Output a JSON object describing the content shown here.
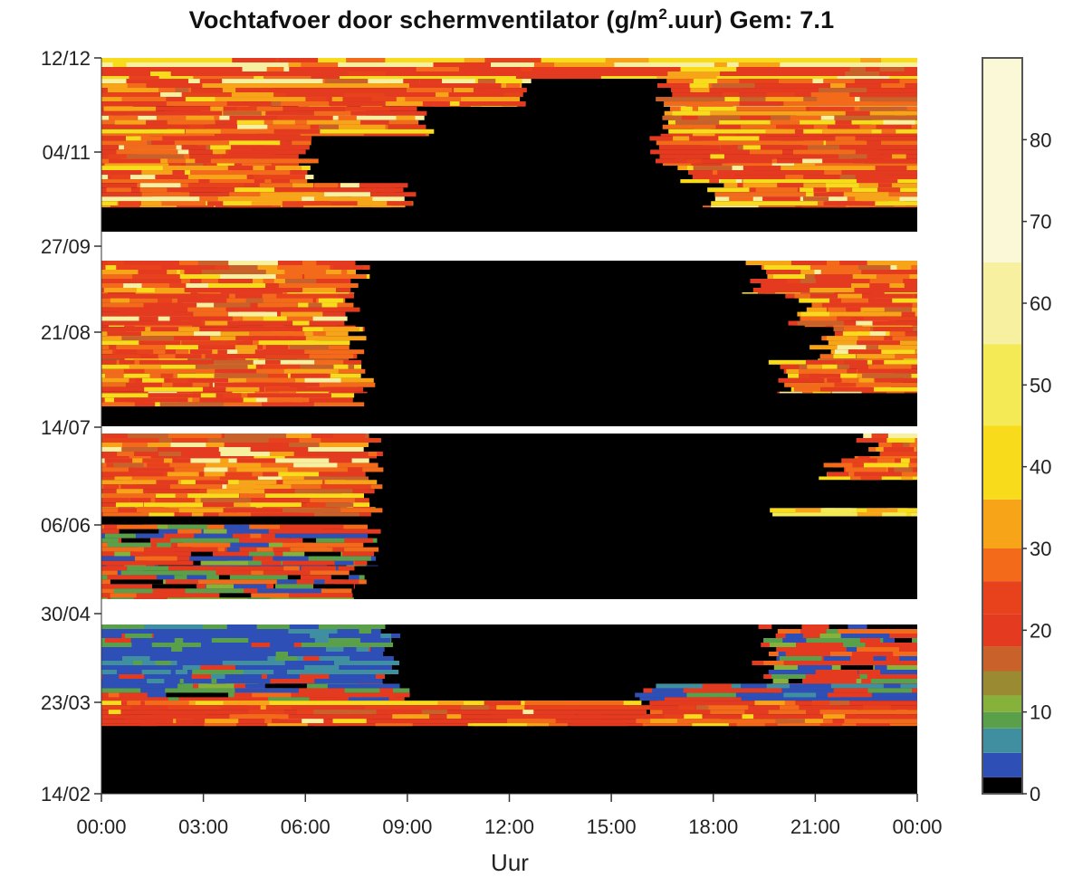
{
  "chart_data": {
    "type": "heatmap",
    "title_main": "Vochtafvoer door schermventilator (g/m",
    "title_sup": "2",
    "title_rest": ".uur) Gem: 7.1",
    "xlabel": "Uur",
    "x_ticks": [
      "00:00",
      "03:00",
      "06:00",
      "09:00",
      "12:00",
      "15:00",
      "18:00",
      "21:00",
      "00:00"
    ],
    "x_range_hours": [
      0,
      24
    ],
    "y_ticks": [
      "12/12",
      "04/11",
      "27/09",
      "21/08",
      "14/07",
      "06/06",
      "30/04",
      "23/03",
      "14/02"
    ],
    "colorbar": {
      "ticks": [
        0,
        10,
        20,
        30,
        40,
        50,
        60,
        70,
        80
      ],
      "range": [
        0,
        90
      ],
      "colors": [
        "#000000",
        "#2e4fb5",
        "#3f8fa0",
        "#5aa04a",
        "#86b23c",
        "#9a8a32",
        "#c8622a",
        "#e43a20",
        "#e8421c",
        "#f26a1a",
        "#f7a418",
        "#f8dc1c",
        "#f3ea55",
        "#f6f0a0",
        "#fbf8d8",
        "#ffffff"
      ]
    },
    "panels": [
      {
        "name": "panel-nov-dec",
        "bands": [
          {
            "frac": [
              0.0,
              0.12
            ],
            "left_end_h": 24,
            "right_start_h": 24,
            "left_palette": "warm",
            "right_palette": "warm"
          },
          {
            "frac": [
              0.12,
              0.28
            ],
            "left_end_h": 12.5,
            "right_start_h": 16.5,
            "left_palette": "warm",
            "right_palette": "warm"
          },
          {
            "frac": [
              0.28,
              0.45
            ],
            "left_end_h": 9.5,
            "right_start_h": 16.8,
            "left_palette": "warm",
            "right_palette": "warm"
          },
          {
            "frac": [
              0.45,
              0.62
            ],
            "left_end_h": 6.1,
            "right_start_h": 16.5,
            "left_palette": "warm",
            "right_palette": "warm"
          },
          {
            "frac": [
              0.62,
              0.72
            ],
            "left_end_h": 6.1,
            "right_start_h": 17.2,
            "left_palette": "warm",
            "right_palette": "warm"
          },
          {
            "frac": [
              0.72,
              0.86
            ],
            "left_end_h": 9.0,
            "right_start_h": 18.0,
            "left_palette": "warm",
            "right_palette": "warm"
          },
          {
            "frac": [
              0.86,
              1.0
            ],
            "left_end_h": 0,
            "right_start_h": 24,
            "left_palette": "warm",
            "right_palette": "warm"
          }
        ]
      },
      {
        "name": "panel-jul-sep",
        "bands": [
          {
            "frac": [
              0.0,
              0.2
            ],
            "left_end_h": 7.6,
            "right_start_h": 19.2,
            "left_palette": "warm",
            "right_palette": "warm"
          },
          {
            "frac": [
              0.2,
              0.4
            ],
            "left_end_h": 7.4,
            "right_start_h": 20.5,
            "left_palette": "warm",
            "right_palette": "warm"
          },
          {
            "frac": [
              0.4,
              0.6
            ],
            "left_end_h": 7.5,
            "right_start_h": 21.2,
            "left_palette": "warm",
            "right_palette": "warm"
          },
          {
            "frac": [
              0.6,
              0.8
            ],
            "left_end_h": 7.8,
            "right_start_h": 20.0,
            "left_palette": "warm",
            "right_palette": "warm"
          },
          {
            "frac": [
              0.8,
              0.88
            ],
            "left_end_h": 7.6,
            "right_start_h": 24,
            "left_palette": "warm",
            "right_palette": "warm"
          },
          {
            "frac": [
              0.88,
              1.0
            ],
            "left_end_h": 0,
            "right_start_h": 24,
            "left_palette": "cool",
            "right_palette": "warm"
          }
        ]
      },
      {
        "name": "panel-may-jul",
        "bands": [
          {
            "frac": [
              0.0,
              0.15
            ],
            "left_end_h": 8.0,
            "right_start_h": 22.5,
            "left_palette": "warm",
            "right_palette": "warm"
          },
          {
            "frac": [
              0.15,
              0.28
            ],
            "left_end_h": 8.0,
            "right_start_h": 21.5,
            "left_palette": "warm",
            "right_palette": "warm"
          },
          {
            "frac": [
              0.28,
              0.45
            ],
            "left_end_h": 8.0,
            "right_start_h": 24,
            "left_palette": "warm",
            "right_palette": "warm"
          },
          {
            "frac": [
              0.45,
              0.5
            ],
            "left_end_h": 8.0,
            "right_start_h": 19.5,
            "left_palette": "warm",
            "right_palette": "yellow"
          },
          {
            "frac": [
              0.5,
              0.55
            ],
            "left_end_h": 0,
            "right_start_h": 24,
            "left_palette": "warm",
            "right_palette": "warm"
          },
          {
            "frac": [
              0.55,
              0.8
            ],
            "left_end_h": 8.0,
            "right_start_h": 24,
            "left_palette": "mixed",
            "right_palette": "warm"
          },
          {
            "frac": [
              0.8,
              1.0
            ],
            "left_end_h": 7.5,
            "right_start_h": 24,
            "left_palette": "mixed",
            "right_palette": "warm"
          }
        ]
      },
      {
        "name": "panel-feb-apr",
        "bands": [
          {
            "frac": [
              0.0,
              0.35
            ],
            "left_end_h": 8.5,
            "right_start_h": 19.5,
            "left_palette": "cool",
            "right_palette": "mixed"
          },
          {
            "frac": [
              0.35,
              0.45
            ],
            "left_end_h": 9.0,
            "right_start_h": 16.0,
            "left_palette": "mixed",
            "right_palette": "cool"
          },
          {
            "frac": [
              0.45,
              0.6
            ],
            "left_end_h": 16.0,
            "right_start_h": 16.0,
            "left_palette": "warm",
            "right_palette": "warm"
          },
          {
            "frac": [
              0.6,
              0.64
            ],
            "left_end_h": 0,
            "right_start_h": 24,
            "left_palette": "warm",
            "right_palette": "warm"
          },
          {
            "frac": [
              0.64,
              1.0
            ],
            "left_end_h": 0,
            "right_start_h": 24,
            "left_palette": "warm",
            "right_palette": "warm"
          }
        ]
      }
    ]
  }
}
